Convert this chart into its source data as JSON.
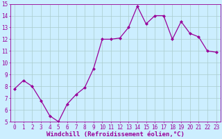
{
  "x": [
    0,
    1,
    2,
    3,
    4,
    5,
    6,
    7,
    8,
    9,
    10,
    11,
    12,
    13,
    14,
    15,
    16,
    17,
    18,
    19,
    20,
    21,
    22,
    23
  ],
  "y": [
    7.8,
    8.5,
    8.0,
    6.8,
    5.5,
    5.0,
    6.5,
    7.3,
    7.9,
    9.5,
    12.0,
    12.0,
    12.1,
    13.0,
    14.8,
    13.3,
    14.0,
    14.0,
    12.0,
    13.5,
    12.5,
    12.2,
    11.0,
    10.9
  ],
  "line_color": "#990099",
  "marker": "D",
  "marker_size": 2.0,
  "xlabel": "Windchill (Refroidissement éolien,°C)",
  "xlabel_fontsize": 6.5,
  "bg_color": "#cceeff",
  "grid_color": "#aacccc",
  "tick_color": "#990099",
  "label_color": "#990099",
  "ylim": [
    5,
    15
  ],
  "xlim": [
    -0.5,
    23.5
  ],
  "yticks": [
    5,
    6,
    7,
    8,
    9,
    10,
    11,
    12,
    13,
    14,
    15
  ],
  "xticks": [
    0,
    1,
    2,
    3,
    4,
    5,
    6,
    7,
    8,
    9,
    10,
    11,
    12,
    13,
    14,
    15,
    16,
    17,
    18,
    19,
    20,
    21,
    22,
    23
  ],
  "tick_fontsize": 5.5,
  "linewidth": 0.9
}
